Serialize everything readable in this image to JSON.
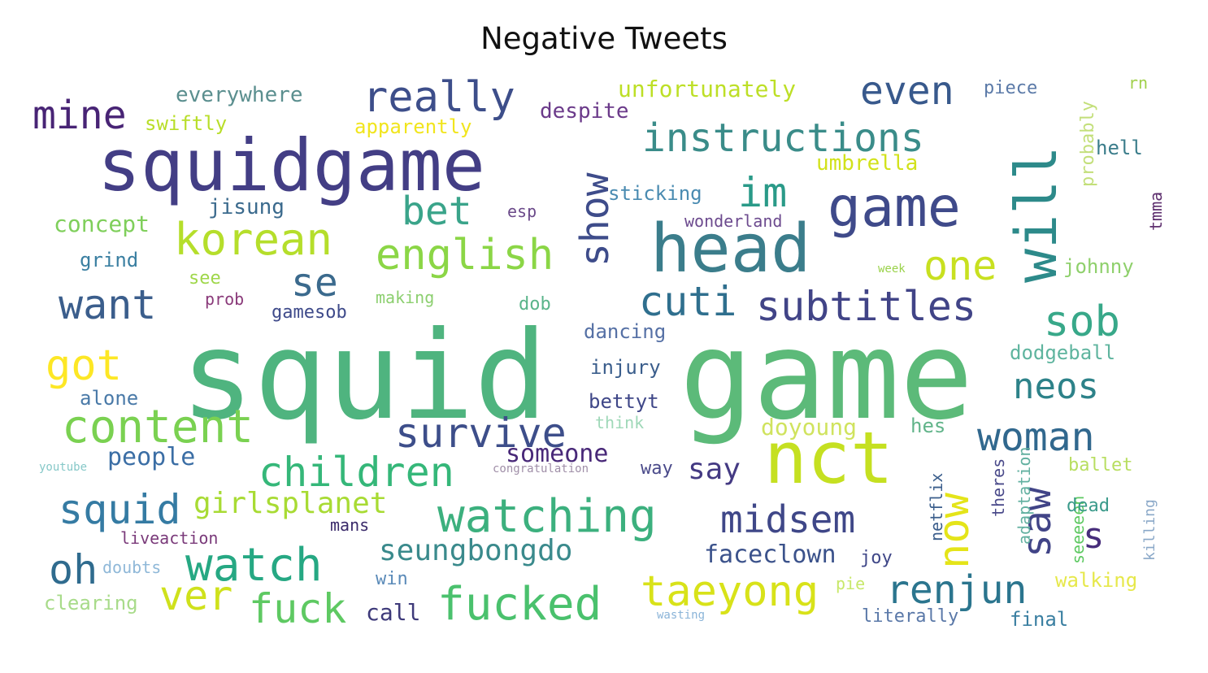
{
  "title": "Negative Tweets",
  "words": [
    {
      "text": "squid",
      "color": "#4fb47f"
    },
    {
      "text": "game",
      "color": "#5cba79"
    },
    {
      "text": "squidgame",
      "color": "#433e85"
    },
    {
      "text": "head",
      "color": "#3b7d8b"
    },
    {
      "text": "nct",
      "color": "#c5e021"
    },
    {
      "text": "game",
      "color": "#3f4a8a"
    },
    {
      "text": "will",
      "color": "#2d8a8a"
    },
    {
      "text": "instructions",
      "color": "#3a8c89"
    },
    {
      "text": "really",
      "color": "#3d4e8a"
    },
    {
      "text": "even",
      "color": "#38598c"
    },
    {
      "text": "mine",
      "color": "#482475"
    },
    {
      "text": "korean",
      "color": "#b5de2b"
    },
    {
      "text": "english",
      "color": "#8bd646"
    },
    {
      "text": "bet",
      "color": "#3aa48a"
    },
    {
      "text": "im",
      "color": "#2a9a88"
    },
    {
      "text": "show",
      "color": "#3e4c8a"
    },
    {
      "text": "one",
      "color": "#c8e020"
    },
    {
      "text": "want",
      "color": "#3b5e8c"
    },
    {
      "text": "se",
      "color": "#3b6a8d"
    },
    {
      "text": "cuti",
      "color": "#2f6f8e"
    },
    {
      "text": "subtitles",
      "color": "#414487"
    },
    {
      "text": "sob",
      "color": "#38a889"
    },
    {
      "text": "got",
      "color": "#fde725"
    },
    {
      "text": "content",
      "color": "#7ad151"
    },
    {
      "text": "survive",
      "color": "#3d4e8a"
    },
    {
      "text": "neos",
      "color": "#2d8289"
    },
    {
      "text": "woman",
      "color": "#31688e"
    },
    {
      "text": "children",
      "color": "#35b779"
    },
    {
      "text": "squid",
      "color": "#357ba3"
    },
    {
      "text": "girlsplanet",
      "color": "#a8db34"
    },
    {
      "text": "watching",
      "color": "#3cb07e"
    },
    {
      "text": "midsem",
      "color": "#3f4788"
    },
    {
      "text": "now",
      "color": "#e4e419"
    },
    {
      "text": "saw",
      "color": "#414487"
    },
    {
      "text": "s",
      "color": "#472d7b"
    },
    {
      "text": "oh",
      "color": "#2f6b8e"
    },
    {
      "text": "watch",
      "color": "#26a883"
    },
    {
      "text": "ver",
      "color": "#cfe11c"
    },
    {
      "text": "fuck",
      "color": "#5ec962"
    },
    {
      "text": "fucked",
      "color": "#4ac16d"
    },
    {
      "text": "taeyong",
      "color": "#d8e219"
    },
    {
      "text": "renjun",
      "color": "#2b758e"
    },
    {
      "text": "seungbongdo",
      "color": "#3a8a8c"
    },
    {
      "text": "faceclown",
      "color": "#3b528b"
    },
    {
      "text": "someone",
      "color": "#482878"
    },
    {
      "text": "people",
      "color": "#3b6ea5"
    },
    {
      "text": "say",
      "color": "#443a83"
    },
    {
      "text": "everywhere",
      "color": "#5b8f8f"
    },
    {
      "text": "swiftly",
      "color": "#b8de29"
    },
    {
      "text": "apparently",
      "color": "#f1e51d"
    },
    {
      "text": "despite",
      "color": "#6b3a8a"
    },
    {
      "text": "unfortunately",
      "color": "#bddf26"
    },
    {
      "text": "umbrella",
      "color": "#d2e21b"
    },
    {
      "text": "piece",
      "color": "#5b7aa8"
    },
    {
      "text": "probably",
      "color": "#c3df7a"
    },
    {
      "text": "rn",
      "color": "#a0d04a"
    },
    {
      "text": "hell",
      "color": "#3b7d8b"
    },
    {
      "text": "tmma",
      "color": "#5e2f6e"
    },
    {
      "text": "sticking",
      "color": "#4a8bb1"
    },
    {
      "text": "jisung",
      "color": "#3b6a8d"
    },
    {
      "text": "esp",
      "color": "#6b4a8a"
    },
    {
      "text": "wonderland",
      "color": "#6c4a8e"
    },
    {
      "text": "concept",
      "color": "#7fcf5b"
    },
    {
      "text": "grind",
      "color": "#3a7fa1"
    },
    {
      "text": "see",
      "color": "#9fd74a"
    },
    {
      "text": "prob",
      "color": "#8a3a7a"
    },
    {
      "text": "gamesob",
      "color": "#3e4a8a"
    },
    {
      "text": "making",
      "color": "#8ccf6f"
    },
    {
      "text": "dob",
      "color": "#5ab48a"
    },
    {
      "text": "week",
      "color": "#9ad24a"
    },
    {
      "text": "johnny",
      "color": "#8fd06c"
    },
    {
      "text": "dancing",
      "color": "#5570a5"
    },
    {
      "text": "injury",
      "color": "#3b5e8c"
    },
    {
      "text": "bettyt",
      "color": "#3f4788"
    },
    {
      "text": "dodgeball",
      "color": "#5eb49e"
    },
    {
      "text": "alone",
      "color": "#4a7aa8"
    },
    {
      "text": "think",
      "color": "#9fd8b8"
    },
    {
      "text": "doyoung",
      "color": "#d0e35e"
    },
    {
      "text": "hes",
      "color": "#62b48a"
    },
    {
      "text": "youtube",
      "color": "#86c8c8"
    },
    {
      "text": "congratulation",
      "color": "#a08fa8"
    },
    {
      "text": "way",
      "color": "#4a4a8a"
    },
    {
      "text": "netflix",
      "color": "#3b5e8c"
    },
    {
      "text": "theres",
      "color": "#4a4a8a"
    },
    {
      "text": "adaptation",
      "color": "#62b0a0"
    },
    {
      "text": "seeeeen",
      "color": "#5ec962"
    },
    {
      "text": "ballet",
      "color": "#b8de60"
    },
    {
      "text": "dead",
      "color": "#3a9a8a"
    },
    {
      "text": "killing",
      "color": "#8aa8c8"
    },
    {
      "text": "liveaction",
      "color": "#7a3a7a"
    },
    {
      "text": "mans",
      "color": "#3a2a6a"
    },
    {
      "text": "joy",
      "color": "#3f4788"
    },
    {
      "text": "doubts",
      "color": "#8fb8d8"
    },
    {
      "text": "clearing",
      "color": "#a8db8a"
    },
    {
      "text": "win",
      "color": "#5a8ab8"
    },
    {
      "text": "call",
      "color": "#3e3a7a"
    },
    {
      "text": "pie",
      "color": "#c8e86a"
    },
    {
      "text": "walking",
      "color": "#e6e84a"
    },
    {
      "text": "wasting",
      "color": "#8ab4d8"
    },
    {
      "text": "literally",
      "color": "#5a78a8"
    },
    {
      "text": "final",
      "color": "#3a7fa1"
    }
  ]
}
